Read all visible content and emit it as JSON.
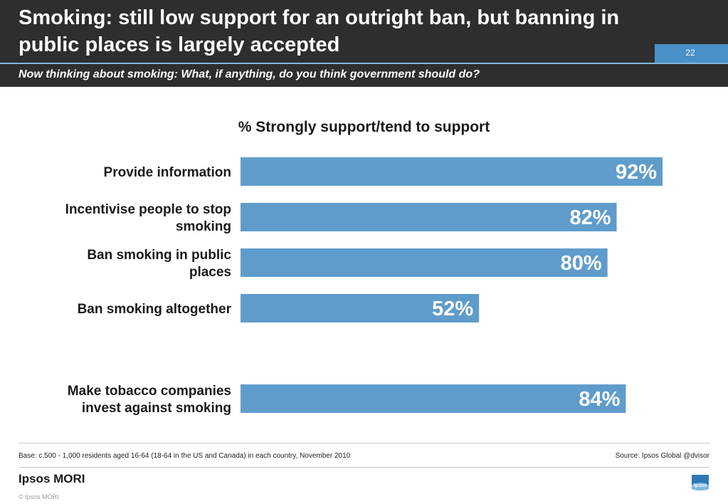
{
  "header": {
    "title": "Smoking: still low support for an outright ban, but banning in public places is largely accepted",
    "page_number": "22",
    "subtitle": "Now thinking about smoking: What, if anything, do you think government should do?"
  },
  "chart_data": {
    "type": "bar",
    "orientation": "horizontal",
    "title": "% Strongly support/tend to support",
    "categories": [
      "Provide information",
      "Incentivise people to stop smoking",
      "Ban smoking in public places",
      "Ban smoking altogether",
      "Make tobacco companies invest against smoking"
    ],
    "category_lines": [
      [
        "Provide information"
      ],
      [
        "Incentivise people to stop",
        "smoking"
      ],
      [
        "Ban smoking in public",
        "places"
      ],
      [
        "Ban smoking altogether"
      ],
      [
        "Make tobacco companies",
        "invest against smoking"
      ]
    ],
    "values": [
      92,
      82,
      80,
      52,
      84
    ],
    "value_labels": [
      "92%",
      "82%",
      "80%",
      "52%",
      "84%"
    ],
    "xlim": [
      0,
      100
    ],
    "grid": false,
    "legend": "none",
    "bar_color": "#5f9ccb"
  },
  "footer": {
    "base": "Base: c.500 - 1,000 residents aged 16-64 (18-64 in the US and Canada) in each country, November 2010",
    "source": "Source: Ipsos Global @dvisor",
    "logo": "Ipsos MORI",
    "copyright": "© Ipsos MORI",
    "badge_text": "Ipsos"
  },
  "colors": {
    "header_bg": "#2e2e2e",
    "accent": "#4a90c8",
    "bar": "#5f9ccb"
  }
}
